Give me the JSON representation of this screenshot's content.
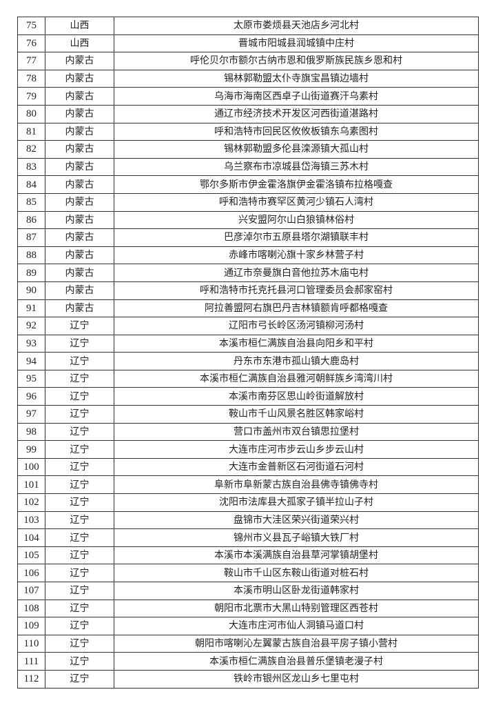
{
  "rows": [
    {
      "no": "75",
      "province": "山西",
      "village": "太原市娄烦县天池店乡河北村"
    },
    {
      "no": "76",
      "province": "山西",
      "village": "晋城市阳城县润城镇中庄村"
    },
    {
      "no": "77",
      "province": "内蒙古",
      "village": "呼伦贝尔市额尔古纳市恩和俄罗斯族民族乡恩和村"
    },
    {
      "no": "78",
      "province": "内蒙古",
      "village": "锡林郭勒盟太仆寺旗宝昌镇边墙村"
    },
    {
      "no": "79",
      "province": "内蒙古",
      "village": "乌海市海南区西卓子山街道赛汗乌素村"
    },
    {
      "no": "80",
      "province": "内蒙古",
      "village": "通辽市经济技术开发区河西街道湛路村"
    },
    {
      "no": "81",
      "province": "内蒙古",
      "village": "呼和浩特市回民区攸攸板镇东乌素图村"
    },
    {
      "no": "82",
      "province": "内蒙古",
      "village": "锡林郭勒盟多伦县滦源镇大孤山村"
    },
    {
      "no": "83",
      "province": "内蒙古",
      "village": "乌兰察布市凉城县岱海镇三苏木村"
    },
    {
      "no": "84",
      "province": "内蒙古",
      "village": "鄂尔多斯市伊金霍洛旗伊金霍洛镇布拉格嘎查"
    },
    {
      "no": "85",
      "province": "内蒙古",
      "village": "呼和浩特市赛罕区黄河少镇石人湾村"
    },
    {
      "no": "86",
      "province": "内蒙古",
      "village": "兴安盟阿尔山白狼镇林俗村"
    },
    {
      "no": "87",
      "province": "内蒙古",
      "village": "巴彦淖尔市五原县塔尔湖镇联丰村"
    },
    {
      "no": "88",
      "province": "内蒙古",
      "village": "赤峰市喀喇沁旗十家乡林营子村"
    },
    {
      "no": "89",
      "province": "内蒙古",
      "village": "通辽市奈曼旗白音他拉苏木庙屯村"
    },
    {
      "no": "90",
      "province": "内蒙古",
      "village": "呼和浩特市托克托县河口管理委员会郝家窑村"
    },
    {
      "no": "91",
      "province": "内蒙古",
      "village": "阿拉善盟阿右旗巴丹吉林镇额肯呼都格嘎查"
    },
    {
      "no": "92",
      "province": "辽宁",
      "village": "辽阳市弓长岭区汤河镇柳河汤村"
    },
    {
      "no": "93",
      "province": "辽宁",
      "village": "本溪市桓仁满族自治县向阳乡和平村"
    },
    {
      "no": "94",
      "province": "辽宁",
      "village": "丹东市东港市孤山镇大鹿岛村"
    },
    {
      "no": "95",
      "province": "辽宁",
      "village": "本溪市桓仁满族自治县雅河朝鲜族乡湾湾川村"
    },
    {
      "no": "96",
      "province": "辽宁",
      "village": "本溪市南芬区思山岭街道解放村"
    },
    {
      "no": "97",
      "province": "辽宁",
      "village": "鞍山市千山风景名胜区韩家峪村"
    },
    {
      "no": "98",
      "province": "辽宁",
      "village": "营口市盖州市双台镇思拉堡村"
    },
    {
      "no": "99",
      "province": "辽宁",
      "village": "大连市庄河市步云山乡步云山村"
    },
    {
      "no": "100",
      "province": "辽宁",
      "village": "大连市金普新区石河街道石河村"
    },
    {
      "no": "101",
      "province": "辽宁",
      "village": "阜新市阜新蒙古族自治县佛寺镇佛寺村"
    },
    {
      "no": "102",
      "province": "辽宁",
      "village": "沈阳市法库县大孤家子镇半拉山子村"
    },
    {
      "no": "103",
      "province": "辽宁",
      "village": "盘锦市大洼区荣兴街道荣兴村"
    },
    {
      "no": "104",
      "province": "辽宁",
      "village": "锦州市义县瓦子峪镇大铁厂村"
    },
    {
      "no": "105",
      "province": "辽宁",
      "village": "本溪市本溪满族自治县草河掌镇胡堡村"
    },
    {
      "no": "106",
      "province": "辽宁",
      "village": "鞍山市千山区东鞍山街道对桩石村"
    },
    {
      "no": "107",
      "province": "辽宁",
      "village": "本溪市明山区卧龙街道韩家村"
    },
    {
      "no": "108",
      "province": "辽宁",
      "village": "朝阳市北票市大黑山特别管理区西苍村"
    },
    {
      "no": "109",
      "province": "辽宁",
      "village": "大连市庄河市仙人洞镇马道口村"
    },
    {
      "no": "110",
      "province": "辽宁",
      "village": "朝阳市喀喇沁左翼蒙古族自治县平房子镇小营村"
    },
    {
      "no": "111",
      "province": "辽宁",
      "village": "本溪市桓仁满族自治县普乐堡镇老漫子村"
    },
    {
      "no": "112",
      "province": "辽宁",
      "village": "铁岭市银州区龙山乡七里屯村"
    }
  ]
}
